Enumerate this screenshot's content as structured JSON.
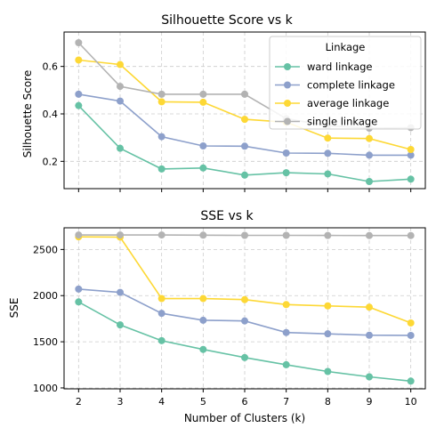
{
  "colors": {
    "ward": "#66c2a5",
    "complete": "#8da0cb",
    "average": "#fdd835",
    "single": "#b3b3b3"
  },
  "chart_data": [
    {
      "type": "line",
      "title": "Silhouette Score vs k",
      "xlabel": "",
      "ylabel": "Silhouette Score",
      "x": [
        2,
        3,
        4,
        5,
        6,
        7,
        8,
        9,
        10
      ],
      "xlim": [
        1.65,
        10.35
      ],
      "ylim": [
        0.085,
        0.745
      ],
      "yticks": [
        0.2,
        0.4,
        0.6
      ],
      "ytick_labels": [
        "0.2",
        "0.4",
        "0.6"
      ],
      "grid": true,
      "show_xtick_labels": false,
      "legend": {
        "title": "Linkage",
        "placement": "top-right",
        "entries": [
          "ward linkage",
          "complete linkage",
          "average linkage",
          "single linkage"
        ]
      },
      "series": [
        {
          "name": "ward linkage",
          "color_key": "ward",
          "values": [
            0.435,
            0.255,
            0.168,
            0.172,
            0.142,
            0.152,
            0.147,
            0.115,
            0.125
          ]
        },
        {
          "name": "complete linkage",
          "color_key": "complete",
          "values": [
            0.483,
            0.454,
            0.304,
            0.265,
            0.264,
            0.235,
            0.234,
            0.226,
            0.226
          ]
        },
        {
          "name": "average linkage",
          "color_key": "average",
          "values": [
            0.627,
            0.608,
            0.451,
            0.449,
            0.377,
            0.365,
            0.298,
            0.296,
            0.25
          ]
        },
        {
          "name": "single linkage",
          "color_key": "single",
          "values": [
            0.7,
            0.516,
            0.483,
            0.483,
            0.483,
            0.38,
            0.35,
            0.34,
            0.342
          ]
        }
      ]
    },
    {
      "type": "line",
      "title": "SSE vs k",
      "xlabel": "Number of Clusters (k)",
      "ylabel": "SSE",
      "x": [
        2,
        3,
        4,
        5,
        6,
        7,
        8,
        9,
        10
      ],
      "xlim": [
        1.65,
        10.35
      ],
      "ylim": [
        990,
        2735
      ],
      "yticks": [
        1000,
        1500,
        2000,
        2500
      ],
      "ytick_labels": [
        "1000",
        "1500",
        "2000",
        "2500"
      ],
      "xtick_labels": [
        "2",
        "3",
        "4",
        "5",
        "6",
        "7",
        "8",
        "9",
        "10"
      ],
      "grid": true,
      "show_xtick_labels": true,
      "series": [
        {
          "name": "ward linkage",
          "color_key": "ward",
          "values": [
            1932,
            1683,
            1512,
            1417,
            1329,
            1251,
            1178,
            1120,
            1074
          ]
        },
        {
          "name": "complete linkage",
          "color_key": "complete",
          "values": [
            2071,
            2035,
            1808,
            1733,
            1726,
            1600,
            1586,
            1571,
            1569
          ]
        },
        {
          "name": "average linkage",
          "color_key": "average",
          "values": [
            2637,
            2634,
            1968,
            1968,
            1957,
            1903,
            1889,
            1875,
            1704
          ]
        },
        {
          "name": "single linkage",
          "color_key": "single",
          "values": [
            2657,
            2657,
            2657,
            2655,
            2653,
            2653,
            2652,
            2651,
            2651
          ]
        }
      ]
    }
  ]
}
